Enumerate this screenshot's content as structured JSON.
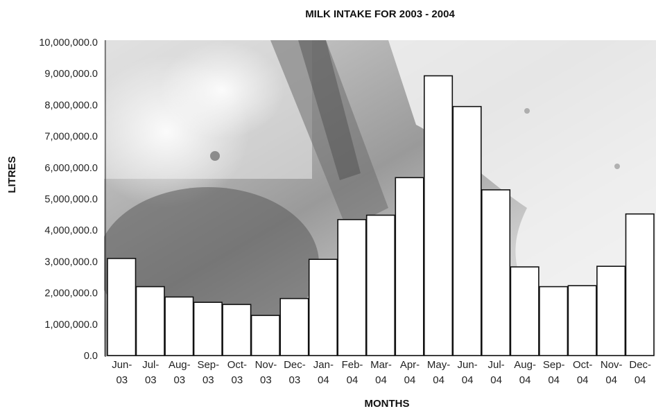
{
  "chart_data": {
    "type": "bar",
    "title": "MILK INTAKE FOR 2003 - 2004",
    "xlabel": "MONTHS",
    "ylabel": "LITRES",
    "ylim": [
      0,
      10000000
    ],
    "yticks": [
      "0.0",
      "1,000,000.0",
      "2,000,000.0",
      "3,000,000.0",
      "4,000,000.0",
      "5,000,000.0",
      "6,000,000.0",
      "7,000,000.0",
      "8,000,000.0",
      "9,000,000.0",
      "10,000,000.0"
    ],
    "categories": [
      [
        "Jun-",
        "03"
      ],
      [
        "Jul-",
        "03"
      ],
      [
        "Aug-",
        "03"
      ],
      [
        "Sep-",
        "03"
      ],
      [
        "Oct-",
        "03"
      ],
      [
        "Nov-",
        "03"
      ],
      [
        "Dec-",
        "03"
      ],
      [
        "Jan-",
        "04"
      ],
      [
        "Feb-",
        "04"
      ],
      [
        "Mar-",
        "04"
      ],
      [
        "Apr-",
        "04"
      ],
      [
        "May-",
        "04"
      ],
      [
        "Jun-",
        "04"
      ],
      [
        "Jul-",
        "04"
      ],
      [
        "Aug-",
        "04"
      ],
      [
        "Sep-",
        "04"
      ],
      [
        "Oct-",
        "04"
      ],
      [
        "Nov-",
        "04"
      ],
      [
        "Dec-",
        "04"
      ]
    ],
    "values": [
      3100000,
      2200000,
      1870000,
      1700000,
      1630000,
      1280000,
      1820000,
      3070000,
      4340000,
      4480000,
      5680000,
      8930000,
      7950000,
      5290000,
      2830000,
      2200000,
      2230000,
      2850000,
      4520000
    ],
    "grid": false,
    "bar_fill": "#ffffff",
    "bar_stroke": "#111111"
  }
}
